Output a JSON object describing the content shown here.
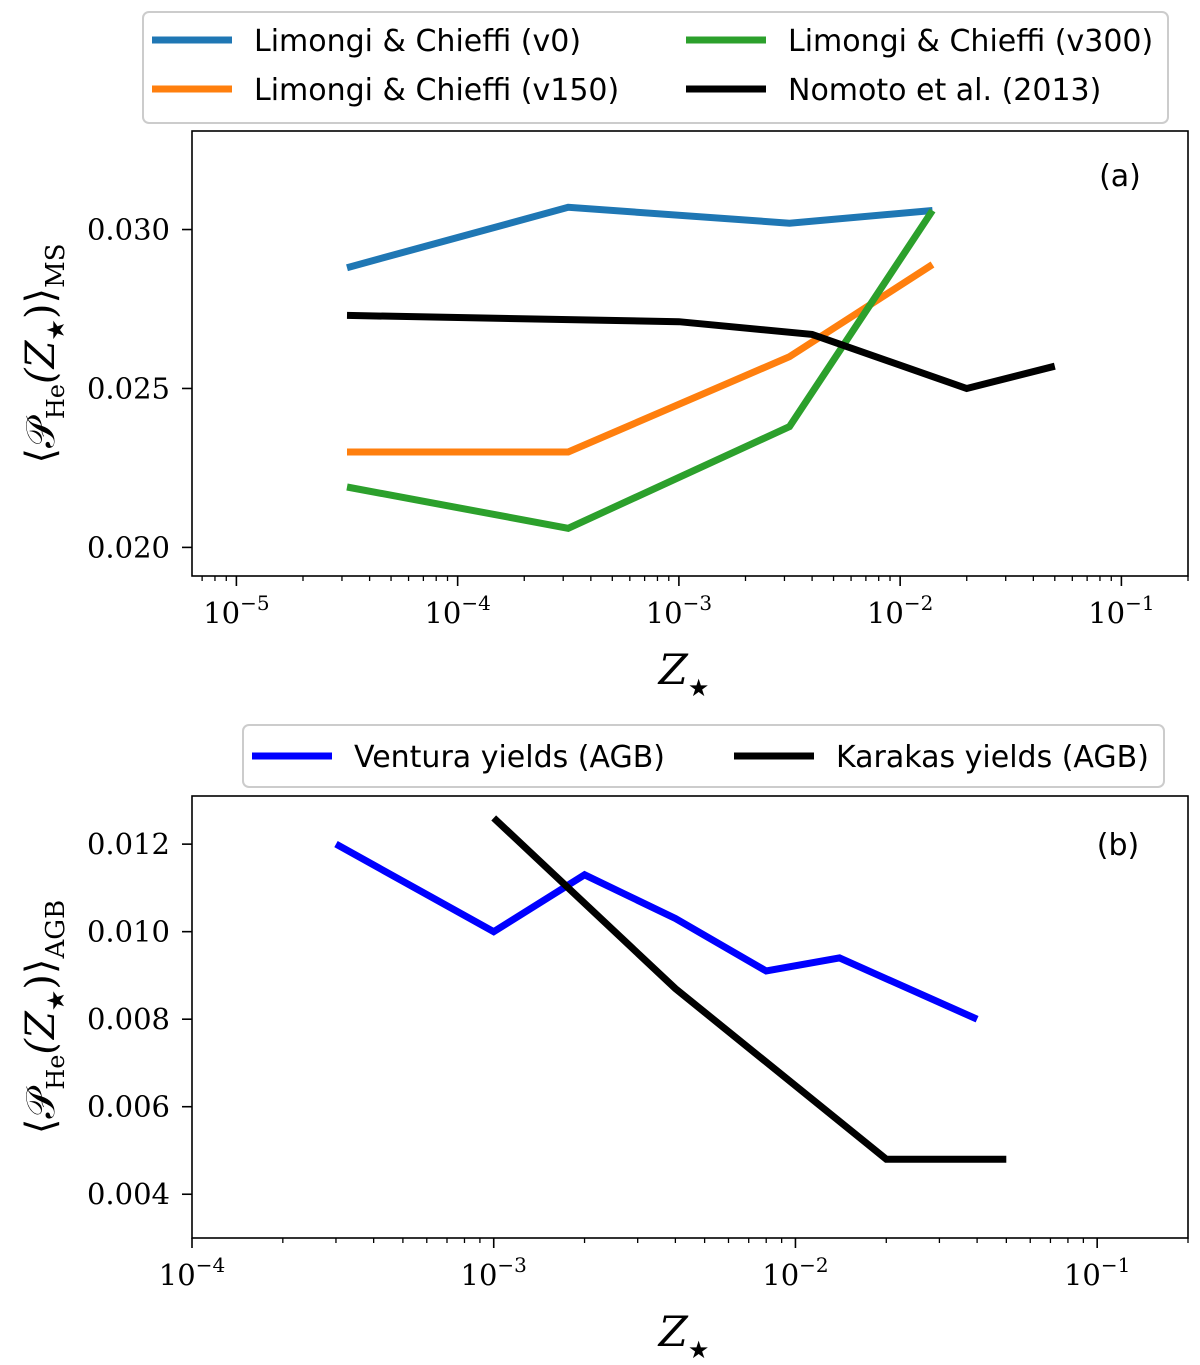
{
  "chart_data": [
    {
      "type": "line",
      "id": "a",
      "panel_label": "(a)",
      "xscale": "log",
      "xlim": [
        6.3e-06,
        0.2
      ],
      "ylim": [
        0.0191,
        0.0331
      ],
      "xlabel": {
        "main": "Z",
        "sub": "★"
      },
      "ylabel": {
        "main": "⟨𝒫",
        "sub1": "He",
        "mid": "(Z",
        "sub2": "★",
        "tail": ")⟩",
        "sub3": "MS"
      },
      "xticks": [
        {
          "value": 1e-05,
          "base": "10",
          "exp": "−5"
        },
        {
          "value": 0.0001,
          "base": "10",
          "exp": "−4"
        },
        {
          "value": 0.001,
          "base": "10",
          "exp": "−3"
        },
        {
          "value": 0.01,
          "base": "10",
          "exp": "−2"
        },
        {
          "value": 0.1,
          "base": "10",
          "exp": "−1"
        }
      ],
      "yticks": [
        {
          "value": 0.02,
          "label": "0.020"
        },
        {
          "value": 0.025,
          "label": "0.025"
        },
        {
          "value": 0.03,
          "label": "0.030"
        }
      ],
      "legend_position": "above",
      "legend_columns": 2,
      "series": [
        {
          "name": "Limongi & Chieffi (v0)",
          "color": "#1f77b4",
          "x": [
            3.16e-05,
            0.000316,
            0.00316,
            0.014
          ],
          "y": [
            0.0288,
            0.0307,
            0.0302,
            0.0306
          ]
        },
        {
          "name": "Limongi & Chieffi (v150)",
          "color": "#ff7f0e",
          "x": [
            3.16e-05,
            0.000316,
            0.00316,
            0.014
          ],
          "y": [
            0.023,
            0.023,
            0.026,
            0.0289
          ]
        },
        {
          "name": "Limongi & Chieffi (v300)",
          "color": "#2ca02c",
          "x": [
            3.16e-05,
            0.000316,
            0.00316,
            0.014
          ],
          "y": [
            0.0219,
            0.0206,
            0.0238,
            0.0306
          ]
        },
        {
          "name": "Nomoto et al. (2013)",
          "color": "#000000",
          "x": [
            3.16e-05,
            0.001,
            0.004,
            0.02,
            0.05
          ],
          "y": [
            0.0273,
            0.0271,
            0.0267,
            0.025,
            0.0257
          ]
        }
      ]
    },
    {
      "type": "line",
      "id": "b",
      "panel_label": "(b)",
      "xscale": "log",
      "xlim": [
        0.0001,
        0.2
      ],
      "ylim": [
        0.003,
        0.0131
      ],
      "xlabel": {
        "main": "Z",
        "sub": "★"
      },
      "ylabel": {
        "main": "⟨𝒫",
        "sub1": "He",
        "mid": "(Z",
        "sub2": "★",
        "tail": ")⟩",
        "sub3": "AGB"
      },
      "xticks": [
        {
          "value": 0.0001,
          "base": "10",
          "exp": "−4"
        },
        {
          "value": 0.001,
          "base": "10",
          "exp": "−3"
        },
        {
          "value": 0.01,
          "base": "10",
          "exp": "−2"
        },
        {
          "value": 0.1,
          "base": "10",
          "exp": "−1"
        }
      ],
      "yticks": [
        {
          "value": 0.004,
          "label": "0.004"
        },
        {
          "value": 0.006,
          "label": "0.006"
        },
        {
          "value": 0.008,
          "label": "0.008"
        },
        {
          "value": 0.01,
          "label": "0.010"
        },
        {
          "value": 0.012,
          "label": "0.012"
        }
      ],
      "legend_position": "above",
      "legend_columns": 2,
      "series": [
        {
          "name": "Ventura yields (AGB)",
          "color": "#0000ff",
          "x": [
            0.0003,
            0.001,
            0.002,
            0.004,
            0.008,
            0.014,
            0.04
          ],
          "y": [
            0.012,
            0.01,
            0.0113,
            0.0103,
            0.0091,
            0.0094,
            0.008
          ]
        },
        {
          "name": "Karakas yields (AGB)",
          "color": "#000000",
          "x": [
            0.001,
            0.004,
            0.02,
            0.05
          ],
          "y": [
            0.0126,
            0.0087,
            0.0048,
            0.0048
          ]
        }
      ]
    }
  ]
}
